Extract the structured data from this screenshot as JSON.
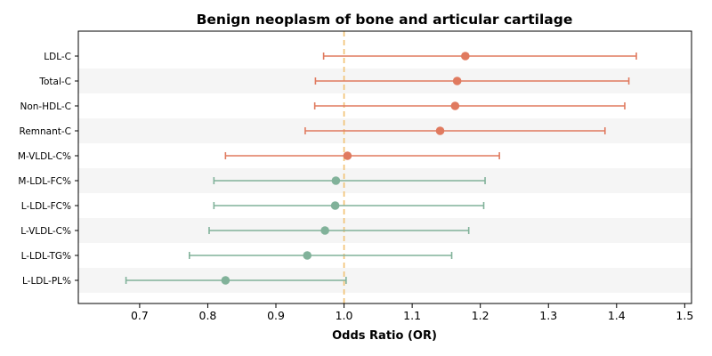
{
  "chart_data": {
    "type": "scatter",
    "subtype": "forest-plot",
    "title": "Benign neoplasm of bone and articular cartilage",
    "xlabel": "Odds Ratio (OR)",
    "ylabel": "",
    "xlim": [
      0.61,
      1.51
    ],
    "xticks": [
      0.7,
      0.8,
      0.9,
      1.0,
      1.1,
      1.2,
      1.3,
      1.4,
      1.5
    ],
    "xtick_labels": [
      "0.7",
      "0.8",
      "0.9",
      "1.0",
      "1.1",
      "1.2",
      "1.3",
      "1.4",
      "1.5"
    ],
    "reference_line": 1.0,
    "reference_color": "#f0c070",
    "row_shading": true,
    "colors": {
      "positive": "#e07a5f",
      "negative": "#81b29a"
    },
    "categories": [
      "LDL-C",
      "Total-C",
      "Non-HDL-C",
      "Remnant-C",
      "M-VLDL-C%",
      "M-LDL-FC%",
      "L-LDL-FC%",
      "L-VLDL-C%",
      "L-LDL-TG%",
      "L-LDL-PL%"
    ],
    "or": [
      1.178,
      1.166,
      1.163,
      1.141,
      1.005,
      0.988,
      0.987,
      0.972,
      0.946,
      0.826
    ],
    "ci_low": [
      0.97,
      0.958,
      0.957,
      0.943,
      0.826,
      0.809,
      0.809,
      0.802,
      0.773,
      0.68
    ],
    "ci_high": [
      1.429,
      1.418,
      1.412,
      1.383,
      1.228,
      1.207,
      1.205,
      1.183,
      1.158,
      1.003
    ]
  }
}
